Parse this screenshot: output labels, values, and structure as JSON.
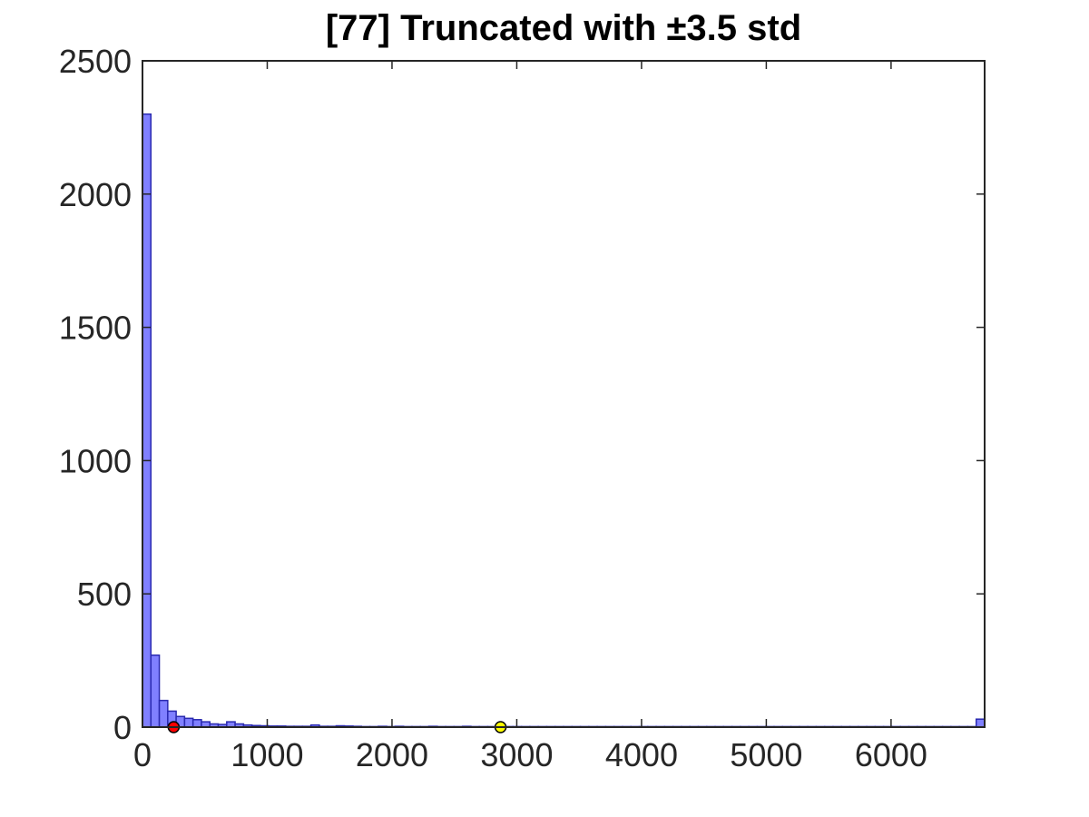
{
  "chart_data": {
    "type": "bar",
    "title": "[77] Truncated with ±3.5 std",
    "xlabel": "",
    "ylabel": "",
    "xlim": [
      0,
      6750
    ],
    "ylim": [
      0,
      2500
    ],
    "x_ticks": [
      0,
      1000,
      2000,
      3000,
      4000,
      5000,
      6000
    ],
    "y_ticks": [
      0,
      500,
      1000,
      1500,
      2000,
      2500
    ],
    "grid": false,
    "box": true,
    "bin_width": 67.5,
    "bins_start": 0,
    "counts": [
      2300,
      270,
      100,
      60,
      40,
      33,
      28,
      20,
      12,
      10,
      20,
      12,
      8,
      6,
      5,
      4,
      4,
      3,
      3,
      3,
      8,
      3,
      3,
      5,
      4,
      3,
      2,
      2,
      3,
      2,
      3,
      2,
      2,
      2,
      3,
      2,
      2,
      2,
      3,
      2,
      2,
      2,
      2,
      2,
      2,
      2,
      2,
      2,
      2,
      2,
      2,
      2,
      2,
      2,
      2,
      2,
      2,
      2,
      2,
      2,
      2,
      2,
      2,
      2,
      2,
      2,
      2,
      2,
      2,
      2,
      2,
      2,
      2,
      2,
      2,
      2,
      2,
      2,
      2,
      2,
      2,
      2,
      2,
      2,
      2,
      2,
      2,
      2,
      2,
      2,
      2,
      2,
      2,
      2,
      2,
      2,
      2,
      2,
      2,
      30
    ],
    "markers": [
      {
        "x": 250,
        "y": 0,
        "color": "#ff0000"
      },
      {
        "x": 2870,
        "y": 0,
        "color": "#ffff00"
      }
    ],
    "bar_color": "#8080ff",
    "bar_edge_color": "#2a2ab0"
  }
}
